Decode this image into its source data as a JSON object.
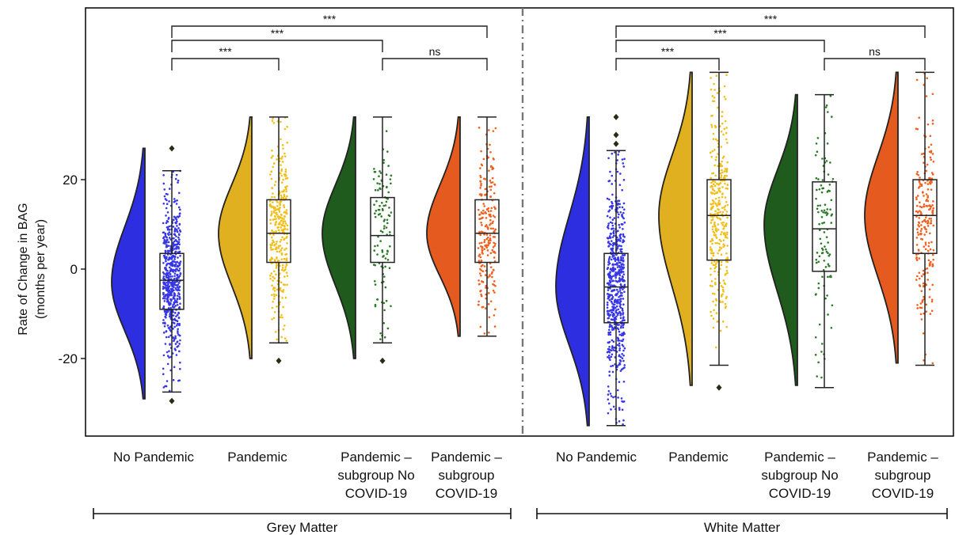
{
  "chart_data": {
    "type": "raincloud",
    "ylabel": "Rate of Change in BAG",
    "ylabel_sub": "(months per year)",
    "ylim": [
      -37,
      60
    ],
    "yticks": [
      -20,
      0,
      20
    ],
    "ytick_labels": [
      "-20",
      "0",
      "20"
    ],
    "panels": [
      {
        "name": "Grey Matter",
        "groups": [
          {
            "label": [
              "No Pandemic"
            ],
            "color": "#2c2ee0",
            "point_color": "#3636e6",
            "min": -29,
            "max": 27,
            "q1": -9,
            "median": -2.5,
            "q3": 3.5,
            "whisker_low": -27.5,
            "whisker_high": 22,
            "mode": -3,
            "n_points": 600,
            "outliers": [
              -29.5,
              27
            ]
          },
          {
            "label": [
              "Pandemic"
            ],
            "color": "#e1b021",
            "point_color": "#f2bf1a",
            "min": -20,
            "max": 34,
            "q1": 1.5,
            "median": 8,
            "q3": 15.5,
            "whisker_low": -16.5,
            "whisker_high": 34,
            "mode": 8,
            "n_points": 330,
            "outliers": [
              -20.5
            ]
          },
          {
            "label": [
              "Pandemic –",
              "subgroup No",
              "COVID-19"
            ],
            "color": "#1f5b1c",
            "point_color": "#2a7a26",
            "min": -20,
            "max": 34,
            "q1": 1.5,
            "median": 7.5,
            "q3": 16,
            "whisker_low": -16.5,
            "whisker_high": 34,
            "mode": 8,
            "n_points": 110,
            "outliers": [
              -20.5
            ]
          },
          {
            "label": [
              "Pandemic –",
              "subgroup",
              "COVID-19"
            ],
            "color": "#e55a1f",
            "point_color": "#f0601e",
            "min": -15,
            "max": 34,
            "q1": 1.5,
            "median": 8,
            "q3": 15.5,
            "whisker_low": -15,
            "whisker_high": 34,
            "mode": 8,
            "n_points": 230,
            "outliers": []
          }
        ],
        "comparisons": [
          {
            "from": 0,
            "to": 3,
            "label": "***",
            "level": 3
          },
          {
            "from": 0,
            "to": 2,
            "label": "***",
            "level": 2
          },
          {
            "from": 0,
            "to": 1,
            "label": "***",
            "level": 1
          },
          {
            "from": 2,
            "to": 3,
            "label": "ns",
            "level": 1
          }
        ]
      },
      {
        "name": "White Matter",
        "groups": [
          {
            "label": [
              "No Pandemic"
            ],
            "color": "#2c2ee0",
            "point_color": "#3636e6",
            "min": -35,
            "max": 34,
            "q1": -12,
            "median": -4,
            "q3": 3.5,
            "whisker_low": -35,
            "whisker_high": 26.5,
            "mode": -4,
            "n_points": 600,
            "outliers": [
              28,
              30,
              34
            ]
          },
          {
            "label": [
              "Pandemic"
            ],
            "color": "#e1b021",
            "point_color": "#f2bf1a",
            "min": -26,
            "max": 44,
            "q1": 2,
            "median": 12,
            "q3": 20,
            "whisker_low": -21.5,
            "whisker_high": 44,
            "mode": 12,
            "n_points": 330,
            "outliers": [
              -26.5
            ]
          },
          {
            "label": [
              "Pandemic –",
              "subgroup No",
              "COVID-19"
            ],
            "color": "#1f5b1c",
            "point_color": "#2a7a26",
            "min": -26,
            "max": 39,
            "q1": -0.5,
            "median": 9,
            "q3": 19.5,
            "whisker_low": -26.5,
            "whisker_high": 39,
            "mode": 10,
            "n_points": 110,
            "outliers": []
          },
          {
            "label": [
              "Pandemic –",
              "subgroup",
              "COVID-19"
            ],
            "color": "#e55a1f",
            "point_color": "#f0601e",
            "min": -21,
            "max": 44,
            "q1": 3.5,
            "median": 12,
            "q3": 20,
            "whisker_low": -21.5,
            "whisker_high": 44,
            "mode": 12,
            "n_points": 230,
            "outliers": []
          }
        ],
        "comparisons": [
          {
            "from": 0,
            "to": 3,
            "label": "***",
            "level": 3
          },
          {
            "from": 0,
            "to": 2,
            "label": "***",
            "level": 2
          },
          {
            "from": 0,
            "to": 1,
            "label": "***",
            "level": 1
          },
          {
            "from": 2,
            "to": 3,
            "label": "ns",
            "level": 1
          }
        ]
      }
    ]
  }
}
